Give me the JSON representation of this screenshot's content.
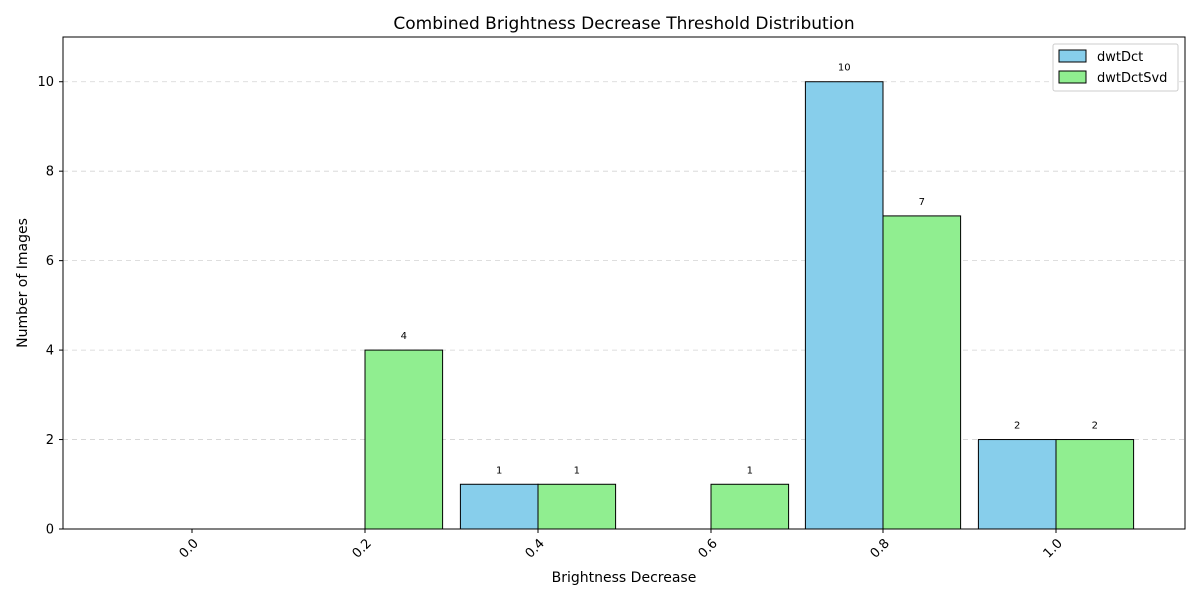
{
  "chart_data": {
    "type": "bar",
    "title": "Combined Brightness Decrease Threshold Distribution",
    "xlabel": "Brightness Decrease",
    "ylabel": "Number of Images",
    "categories": [
      "0.0",
      "0.2",
      "0.4",
      "0.6",
      "0.8",
      "1.0"
    ],
    "series": [
      {
        "name": "dwtDct",
        "values": [
          0,
          0,
          1,
          0,
          10,
          2
        ],
        "color": "#87CEEB",
        "labels": [
          "",
          "",
          "1",
          "",
          "10",
          "2"
        ]
      },
      {
        "name": "dwtDctSvd",
        "values": [
          0,
          4,
          1,
          1,
          7,
          2
        ],
        "color": "#90EE90",
        "labels": [
          "",
          "4",
          "1",
          "1",
          "7",
          "2"
        ]
      }
    ],
    "ylim": [
      0,
      11
    ],
    "yticks": [
      "0",
      "2",
      "4",
      "6",
      "8",
      "10"
    ],
    "grid": true,
    "legend_position": "top-right"
  }
}
